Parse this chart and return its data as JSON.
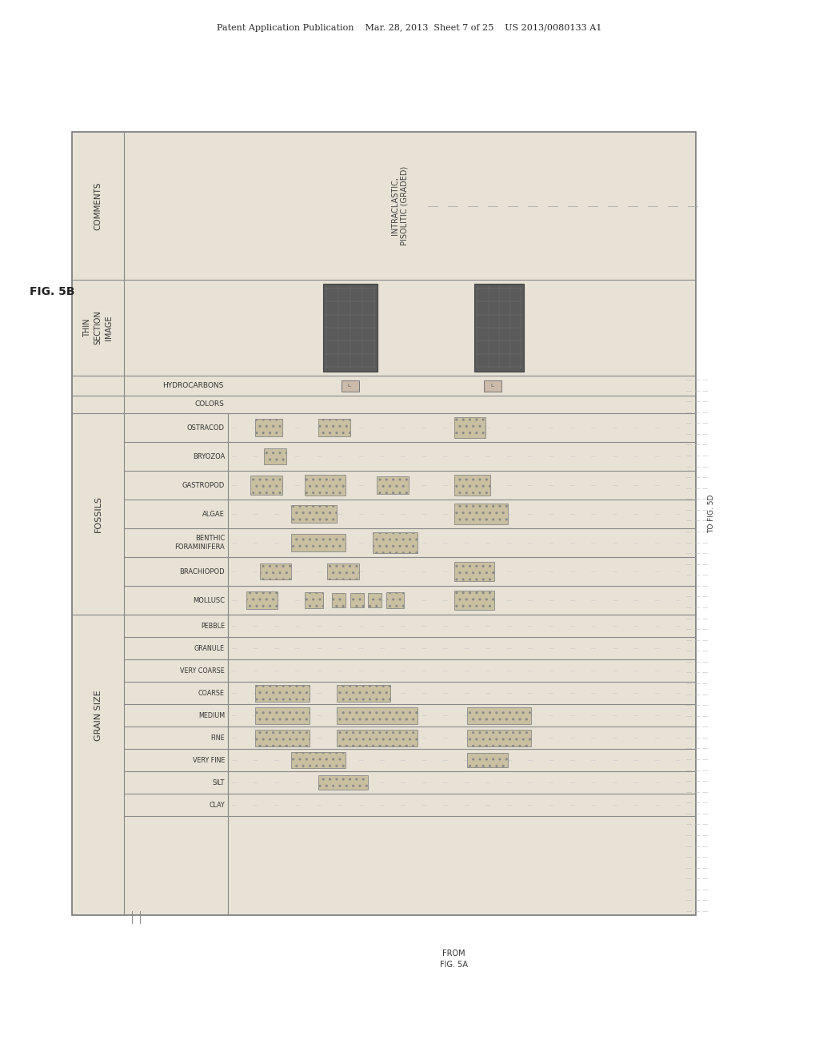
{
  "page_header": "Patent Application Publication    Mar. 28, 2013  Sheet 7 of 25    US 2013/0080133 A1",
  "fig_label": "FIG. 5B",
  "bg_color": "#ddd8cc",
  "paper_color": "#e8e2d6",
  "border_color": "#777777",
  "title_comments": "COMMENTS",
  "title_thin_section": "THIN\nSECTION\nIMAGE",
  "title_hydrocarbons": "HYDROCARBONS",
  "title_colors": "COLORS",
  "title_fossils": "FOSSILS",
  "title_grain_size": "GRAIN SIZE",
  "comment_text": "INTRACLASTIC,\nPISOLITIC (GRADED)",
  "fossil_rows": [
    "OSTRACOD",
    "BRYOZOA",
    "GASTROPOD",
    "ALGAE",
    "BENTHIC\nFORAMINIFERA",
    "BRACHIOPOD",
    "MOLLUSC"
  ],
  "grain_rows": [
    "PEBBLE",
    "GRANULE",
    "VERY COARSE",
    "COARSE",
    "MEDIUM",
    "FINE",
    "VERY FINE",
    "SILT",
    "CLAY"
  ],
  "to_fig_label": "TO FIG. 5D",
  "from_fig_label": "FROM\nFIG. 5A",
  "dark_image_color": "#5a5a5a",
  "light_bar_color": "#c8c0a0",
  "bar_edge_color": "#888888"
}
